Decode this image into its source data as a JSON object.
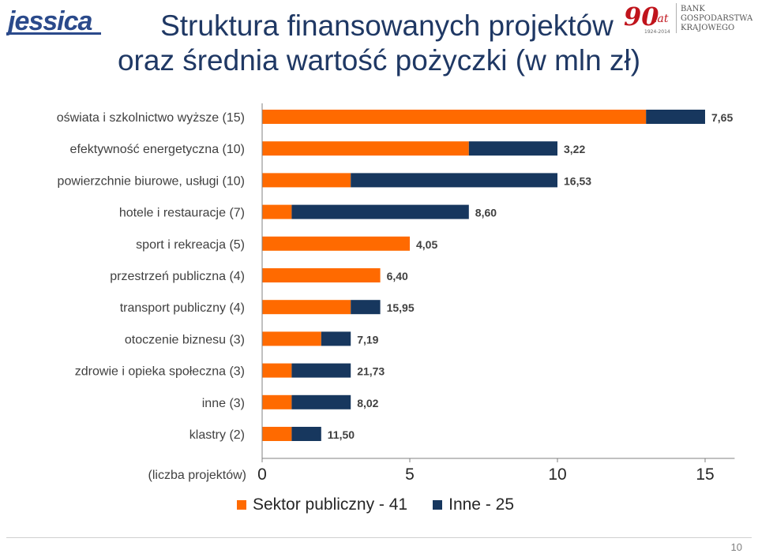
{
  "header": {
    "logo_left_text": "jessica",
    "logo_right_text_bank": "BANK",
    "logo_right_text_name1": "GOSPODARSTWA",
    "logo_right_text_name2": "KRAJOWEGO",
    "logo_right_anniv": "90",
    "logo_right_lat": "lat",
    "logo_right_years": "1924-2014",
    "title_line1": "Struktura finansowanych projektów",
    "title_line2": "oraz średnia wartość pożyczki (w mln zł)"
  },
  "colors": {
    "publiczny": "#ff6a00",
    "inne": "#17375e",
    "title": "#1f3864"
  },
  "chart_data": {
    "type": "bar",
    "orientation": "horizontal",
    "stacked": true,
    "categories": [
      "oświata i szkolnictwo wyższe (15)",
      "efektywność energetyczna (10)",
      "powierzchnie biurowe, usługi (10)",
      "hotele i restauracje (7)",
      "sport i rekreacja (5)",
      "przestrzeń publiczna (4)",
      "transport publiczny (4)",
      "otoczenie biznesu (3)",
      "zdrowie i opieka społeczna (3)",
      "inne (3)",
      "klastry (2)"
    ],
    "series": [
      {
        "name": "Sektor publiczny - 41",
        "color": "#ff6a00",
        "values": [
          13,
          7,
          3,
          1,
          5,
          4,
          3,
          2,
          1,
          1,
          1
        ]
      },
      {
        "name": "Inne - 25",
        "color": "#17375e",
        "values": [
          2,
          3,
          7,
          6,
          0,
          0,
          1,
          1,
          2,
          2,
          1
        ]
      }
    ],
    "data_labels": [
      "7,65",
      "3,22",
      "16,53",
      "8,60",
      "4,05",
      "6,40",
      "15,95",
      "7,19",
      "21,73",
      "8,02",
      "11,50"
    ],
    "xlabel": "(liczba projektów)",
    "xlim": [
      0,
      16
    ],
    "xticks": [
      0,
      5,
      10,
      15
    ],
    "xtick_labels": [
      "0",
      "5",
      "10",
      "15"
    ],
    "grid": false,
    "legend_position": "bottom"
  },
  "legend": [
    {
      "label": "Sektor publiczny - 41",
      "color": "#ff6a00"
    },
    {
      "label": "Inne - 25",
      "color": "#17375e"
    }
  ],
  "footer": {
    "page_number": "10"
  }
}
